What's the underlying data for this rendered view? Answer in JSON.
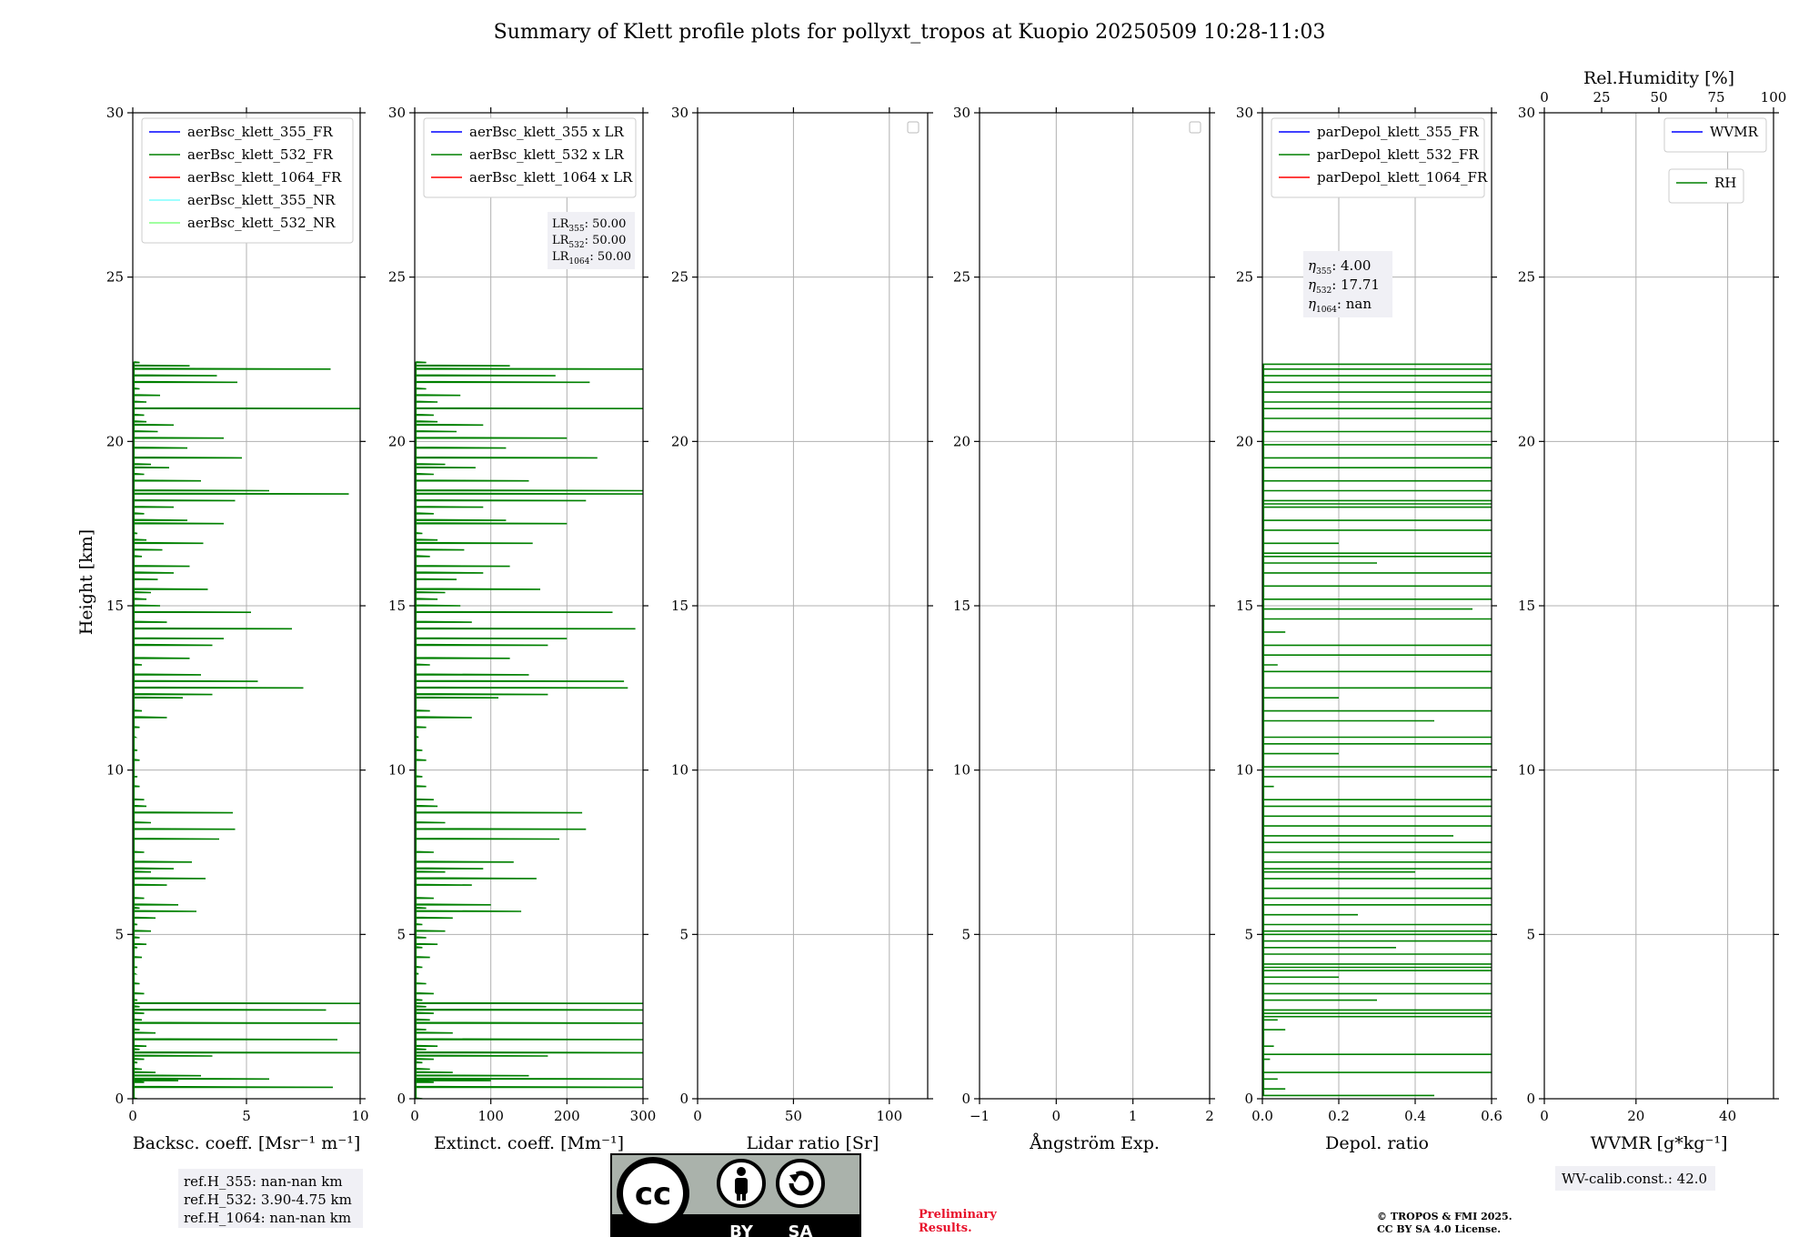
{
  "title": "Summary of Klett profile plots for pollyxt_tropos at Kuopio 20250509 10:28-11:03",
  "ylabel": "Height [km]",
  "colors": {
    "green": "#008000",
    "blue": "#0000ff",
    "red": "#ff0000",
    "cyan": "#7fffff",
    "lightgreen": "#80ff80",
    "grid": "#b0b0b0",
    "box": "#f0f0f5",
    "prelim": "#e8102a"
  },
  "chart_data": [
    {
      "id": "bsc",
      "type": "line",
      "xlabel": "Backsc. coeff. [Msr⁻¹ m⁻¹]",
      "xlim": [
        0,
        10
      ],
      "ylim": [
        0,
        30
      ],
      "xticks": [
        "0",
        "5",
        "10"
      ],
      "xtick_values": [
        0,
        5,
        10
      ],
      "yticks": [
        "0",
        "5",
        "10",
        "15",
        "20",
        "25",
        "30"
      ],
      "grid": true,
      "legend_position": "upper-right",
      "legend": [
        {
          "label": "aerBsc_klett_355_FR",
          "color": "#0000ff"
        },
        {
          "label": "aerBsc_klett_532_FR",
          "color": "#008000"
        },
        {
          "label": "aerBsc_klett_1064_FR",
          "color": "#ff0000"
        },
        {
          "label": "aerBsc_klett_355_NR",
          "color": "#7fffff"
        },
        {
          "label": "aerBsc_klett_532_NR",
          "color": "#80ff80"
        }
      ],
      "series": [
        {
          "name": "aerBsc_klett_532_FR",
          "color": "#008000",
          "x": [
            0.2,
            0.5,
            2.0,
            6.0,
            8.8,
            3.0,
            1.0,
            0.4,
            0.2,
            0.5,
            3.5,
            10.0,
            0.3,
            0.6,
            9.0,
            1.0,
            0.3,
            10.0,
            0.4,
            0.5,
            8.5,
            0.3,
            10,
            0.2,
            0.5,
            0.3,
            0.1,
            0.2,
            0.4,
            0.2,
            0.6,
            0.3,
            0.8,
            0.2,
            1.0,
            0.3,
            2.0,
            2.8,
            0.5,
            1.5,
            3.2,
            0.8,
            1.8,
            2.6,
            0.5,
            3.8,
            4.5,
            0.8,
            4.4,
            0.6,
            0.5,
            0.3,
            0.2,
            0.3,
            0.2,
            0.1,
            0.3,
            1.5,
            0.4,
            2.2,
            7.5,
            3.5,
            5.5,
            3.0,
            0.4,
            2.5,
            3.5,
            4.0,
            7.0,
            1.5,
            5.2,
            1.2,
            0.6,
            0.8,
            3.3,
            1.1,
            1.8,
            2.5,
            0.4,
            1.3,
            3.1,
            0.6,
            0.2,
            4.0,
            2.4,
            0.5,
            1.8,
            4.5,
            9.5,
            6.0,
            3.0,
            0.5,
            1.6,
            0.8,
            4.8,
            2.4,
            4.0,
            1.1,
            1.8,
            0.6,
            0.5,
            10.5,
            0.6,
            1.2,
            0.3,
            4.6,
            3.7,
            8.7,
            2.5,
            0.3
          ],
          "y": [
            0.0,
            0.5,
            0.55,
            0.6,
            0.35,
            0.7,
            0.8,
            0.9,
            1.1,
            1.2,
            1.3,
            1.4,
            1.5,
            1.6,
            1.8,
            2.0,
            2.1,
            2.3,
            2.4,
            2.6,
            2.7,
            2.8,
            2.9,
            3.0,
            3.2,
            3.5,
            3.8,
            4.0,
            4.3,
            4.6,
            4.7,
            4.9,
            5.1,
            5.3,
            5.5,
            5.8,
            5.9,
            5.7,
            6.1,
            6.5,
            6.7,
            6.9,
            7.0,
            7.2,
            7.5,
            7.9,
            8.2,
            8.4,
            8.7,
            8.9,
            9.1,
            9.5,
            9.8,
            10.3,
            10.6,
            11.0,
            11.3,
            11.6,
            11.8,
            12.2,
            12.5,
            12.3,
            12.7,
            12.9,
            13.2,
            13.4,
            13.8,
            14.0,
            14.3,
            14.5,
            14.8,
            15.0,
            15.2,
            15.4,
            15.5,
            15.8,
            16.0,
            16.2,
            16.5,
            16.7,
            16.9,
            17.0,
            17.2,
            17.5,
            17.6,
            17.8,
            18.0,
            18.2,
            18.4,
            18.5,
            18.8,
            19.0,
            19.2,
            19.3,
            19.5,
            19.8,
            20.1,
            20.3,
            20.5,
            20.6,
            20.8,
            21.0,
            21.2,
            21.4,
            21.6,
            21.8,
            22.0,
            22.2,
            22.3,
            22.4
          ]
        }
      ],
      "ref_box": [
        "ref.H_355: nan-nan km",
        "ref.H_532: 3.90-4.75 km",
        "ref.H_1064: nan-nan km"
      ]
    },
    {
      "id": "ext",
      "type": "line",
      "xlabel": "Extinct. coeff. [Mm⁻¹]",
      "xlim": [
        0,
        300
      ],
      "ylim": [
        0,
        30
      ],
      "xticks": [
        "0",
        "100",
        "200",
        "300"
      ],
      "xtick_values": [
        0,
        100,
        200,
        300
      ],
      "yticks": [
        "0",
        "5",
        "10",
        "15",
        "20",
        "25",
        "30"
      ],
      "grid": true,
      "legend_position": "upper-right",
      "legend": [
        {
          "label": "aerBsc_klett_355 x LR",
          "color": "#0000ff"
        },
        {
          "label": "aerBsc_klett_532 x LR",
          "color": "#008000"
        },
        {
          "label": "aerBsc_klett_1064 x LR",
          "color": "#ff0000"
        }
      ],
      "lr_box": [
        [
          "LR",
          "355",
          ": 50.00"
        ],
        [
          "LR",
          "532",
          ": 50.00"
        ],
        [
          "LR",
          "1064",
          ": 50.00"
        ]
      ],
      "series": [
        {
          "name": "aerBsc_klett_532 x LR",
          "color": "#008000",
          "x": [
            10,
            25,
            100,
            300,
            300,
            150,
            50,
            20,
            10,
            25,
            175,
            300,
            15,
            30,
            300,
            50,
            15,
            300,
            20,
            25,
            300,
            15,
            300,
            10,
            25,
            15,
            5,
            10,
            20,
            10,
            30,
            15,
            40,
            10,
            50,
            15,
            100,
            140,
            25,
            75,
            160,
            40,
            90,
            130,
            25,
            190,
            225,
            40,
            220,
            30,
            25,
            15,
            10,
            15,
            10,
            5,
            15,
            75,
            20,
            110,
            280,
            175,
            275,
            150,
            20,
            125,
            175,
            200,
            290,
            75,
            260,
            60,
            30,
            40,
            165,
            55,
            90,
            125,
            20,
            65,
            155,
            30,
            10,
            200,
            120,
            25,
            90,
            225,
            300,
            300,
            150,
            25,
            80,
            40,
            240,
            120,
            200,
            55,
            90,
            30,
            25,
            300,
            30,
            60,
            15,
            230,
            185,
            300,
            125,
            15
          ],
          "y": [
            0.0,
            0.5,
            0.55,
            0.6,
            0.35,
            0.7,
            0.8,
            0.9,
            1.1,
            1.2,
            1.3,
            1.4,
            1.5,
            1.6,
            1.8,
            2.0,
            2.1,
            2.3,
            2.4,
            2.6,
            2.7,
            2.8,
            2.9,
            3.0,
            3.2,
            3.5,
            3.8,
            4.0,
            4.3,
            4.6,
            4.7,
            4.9,
            5.1,
            5.3,
            5.5,
            5.8,
            5.9,
            5.7,
            6.1,
            6.5,
            6.7,
            6.9,
            7.0,
            7.2,
            7.5,
            7.9,
            8.2,
            8.4,
            8.7,
            8.9,
            9.1,
            9.5,
            9.8,
            10.3,
            10.6,
            11.0,
            11.3,
            11.6,
            11.8,
            12.2,
            12.5,
            12.3,
            12.7,
            12.9,
            13.2,
            13.4,
            13.8,
            14.0,
            14.3,
            14.5,
            14.8,
            15.0,
            15.2,
            15.4,
            15.5,
            15.8,
            16.0,
            16.2,
            16.5,
            16.7,
            16.9,
            17.0,
            17.2,
            17.5,
            17.6,
            17.8,
            18.0,
            18.2,
            18.4,
            18.5,
            18.8,
            19.0,
            19.2,
            19.3,
            19.5,
            19.8,
            20.1,
            20.3,
            20.5,
            20.6,
            20.8,
            21.0,
            21.2,
            21.4,
            21.6,
            21.8,
            22.0,
            22.2,
            22.3,
            22.4
          ]
        }
      ]
    },
    {
      "id": "lr",
      "type": "line",
      "xlabel": "Lidar ratio [Sr]",
      "xlim": [
        0,
        120
      ],
      "ylim": [
        0,
        30
      ],
      "xticks": [
        "0",
        "50",
        "100"
      ],
      "xtick_values": [
        0,
        50,
        100
      ],
      "yticks": [
        "0",
        "5",
        "10",
        "15",
        "20",
        "25",
        "30"
      ],
      "grid": true,
      "legend_position": "upper-right",
      "legend": [],
      "series": []
    },
    {
      "id": "ang",
      "type": "line",
      "xlabel": "Ångström Exp.",
      "xlim": [
        -1,
        2
      ],
      "ylim": [
        0,
        30
      ],
      "xticks": [
        "−1",
        "0",
        "1",
        "2"
      ],
      "xtick_values": [
        -1,
        0,
        1,
        2
      ],
      "yticks": [
        "0",
        "5",
        "10",
        "15",
        "20",
        "25",
        "30"
      ],
      "grid": true,
      "legend_position": "upper-right",
      "legend": [],
      "series": []
    },
    {
      "id": "dep",
      "type": "line",
      "xlabel": "Depol. ratio",
      "xlim": [
        0,
        0.6
      ],
      "ylim": [
        0,
        30
      ],
      "xticks": [
        "0.0",
        "0.2",
        "0.4",
        "0.6"
      ],
      "xtick_values": [
        0,
        0.2,
        0.4,
        0.6
      ],
      "yticks": [
        "0",
        "5",
        "10",
        "15",
        "20",
        "25",
        "30"
      ],
      "grid": true,
      "legend_position": "upper-right",
      "legend": [
        {
          "label": "parDepol_klett_355_FR",
          "color": "#0000ff"
        },
        {
          "label": "parDepol_klett_532_FR",
          "color": "#008000"
        },
        {
          "label": "parDepol_klett_1064_FR",
          "color": "#ff0000"
        }
      ],
      "eta_box": [
        [
          "η",
          "355",
          ": 4.00"
        ],
        [
          "η",
          "532",
          ": 17.71"
        ],
        [
          "η",
          "1064",
          ": nan"
        ]
      ],
      "series": [
        {
          "name": "parDepol_klett_532_FR",
          "color": "#008000",
          "x": [
            0.45,
            0.06,
            0.04,
            0.06,
            0.6,
            0.02,
            0.6,
            0.03,
            0.06,
            0.04,
            0.6,
            0.6,
            0.3,
            0.6,
            0.6,
            0.2,
            0.6,
            0.6,
            0.6,
            0.35,
            0.6,
            0.6,
            0.6,
            0.6,
            0.25,
            0.6,
            0.6,
            0.6,
            0.6,
            0.4,
            0.6,
            0.6,
            0.6,
            0.5,
            0.6,
            0.6,
            0.6,
            0.6,
            0.03,
            0.6,
            0.6,
            0.2,
            0.6,
            0.6,
            0.45,
            0.6,
            0.2,
            0.6,
            0.6,
            0.04,
            0.6,
            0.6,
            0.06,
            0.6,
            0.55,
            0.6,
            0.6,
            0.6,
            0.3,
            0.6,
            0.2,
            0.6,
            0.6,
            0.6,
            0.6,
            0.6,
            0.6,
            0.6,
            0.6,
            0.6,
            0.6,
            0.6,
            0.6,
            0.6,
            0.6,
            0.6,
            0.6,
            0.6,
            0.6,
            0.6,
            0.6,
            0.6,
            0.6,
            0.6,
            0.6
          ],
          "y": [
            0.1,
            0.3,
            0.6,
            0.8,
            0.8,
            1.2,
            1.35,
            1.6,
            2.1,
            2.4,
            2.5,
            2.7,
            3.0,
            3.2,
            3.5,
            3.7,
            3.9,
            4.1,
            4.4,
            4.6,
            4.8,
            5.0,
            5.1,
            5.3,
            5.6,
            5.9,
            6.1,
            6.4,
            6.7,
            6.9,
            7.2,
            7.5,
            7.8,
            8.0,
            8.3,
            8.6,
            8.9,
            9.1,
            9.5,
            9.8,
            10.1,
            10.5,
            10.8,
            11.0,
            11.5,
            11.8,
            12.2,
            12.5,
            13.0,
            13.2,
            13.5,
            13.8,
            14.2,
            14.6,
            14.9,
            15.2,
            15.6,
            16.0,
            16.3,
            16.6,
            16.9,
            17.3,
            17.6,
            18.0,
            18.2,
            18.5,
            18.8,
            19.2,
            19.5,
            19.9,
            20.3,
            20.7,
            21.0,
            21.2,
            21.5,
            21.8,
            22.0,
            22.2,
            22.35,
            18.1,
            16.5,
            7.0,
            5.0,
            4.0,
            2.6
          ]
        }
      ]
    },
    {
      "id": "wv",
      "type": "line",
      "xlabel": "WVMR [g*kg⁻¹]",
      "xlim": [
        0,
        50
      ],
      "ylim": [
        0,
        30
      ],
      "xticks": [
        "0",
        "20",
        "40"
      ],
      "xtick_values": [
        0,
        20,
        40
      ],
      "yticks": [
        "0",
        "5",
        "10",
        "15",
        "20",
        "25",
        "30"
      ],
      "grid": true,
      "legend_position": "upper-right",
      "top_axis": {
        "label": "Rel.Humidity [%]",
        "xlim": [
          0,
          100
        ],
        "xticks": [
          "0",
          "25",
          "50",
          "75",
          "100"
        ],
        "xtick_values": [
          0,
          25,
          50,
          75,
          100
        ]
      },
      "legend": [
        {
          "label": "WVMR",
          "color": "#0000ff"
        }
      ],
      "legend2": [
        {
          "label": "RH",
          "color": "#008000"
        }
      ],
      "wv_box": "WV-calib.const.: 42.0",
      "series": []
    }
  ],
  "badge": {
    "left": "BY",
    "right": "SA",
    "cc": "cc"
  },
  "prelim": [
    "Preliminary",
    "Results."
  ],
  "copyright": [
    "© TROPOS & FMI 2025.",
    "CC BY SA 4.0 License."
  ]
}
